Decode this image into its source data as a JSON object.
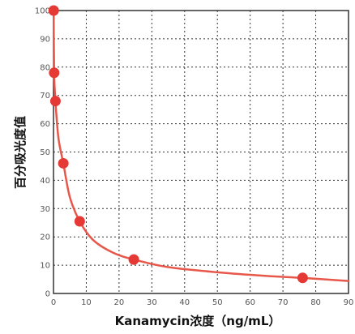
{
  "chart_data": {
    "type": "line",
    "title": "",
    "xlabel": "Kanamycin浓度（ng/mL）",
    "ylabel": "百分吸光度值",
    "xlim": [
      0,
      90
    ],
    "ylim": [
      0,
      100
    ],
    "xticks": [
      0,
      10,
      20,
      30,
      40,
      50,
      60,
      70,
      80,
      90
    ],
    "yticks": [
      0,
      10,
      20,
      30,
      40,
      50,
      60,
      70,
      80,
      90,
      100
    ],
    "grid": true,
    "grid_style": "dotted",
    "line_color": "#e8584a",
    "point_color": "#e53935",
    "series": [
      {
        "points": [
          {
            "x": 0.05,
            "y": 100
          },
          {
            "x": 0.2,
            "y": 78
          },
          {
            "x": 0.6,
            "y": 68
          },
          {
            "x": 3,
            "y": 46
          },
          {
            "x": 8,
            "y": 25.5
          },
          {
            "x": 24.5,
            "y": 12
          },
          {
            "x": 76,
            "y": 5.5
          }
        ],
        "curve": [
          [
            0.05,
            100
          ],
          [
            0.2,
            78
          ],
          [
            0.6,
            68
          ],
          [
            1.5,
            55
          ],
          [
            3,
            46
          ],
          [
            5,
            34
          ],
          [
            8,
            25.5
          ],
          [
            12,
            19
          ],
          [
            18,
            14.5
          ],
          [
            24.5,
            12
          ],
          [
            35,
            9.3
          ],
          [
            50,
            7.5
          ],
          [
            65,
            6.2
          ],
          [
            76,
            5.5
          ],
          [
            90,
            4.4
          ]
        ]
      }
    ]
  }
}
